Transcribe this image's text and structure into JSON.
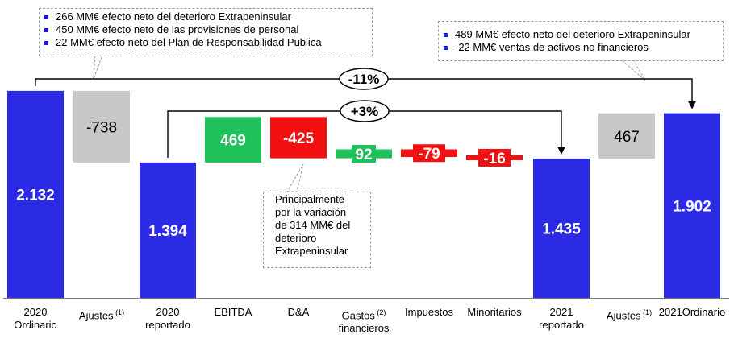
{
  "chart_data": {
    "type": "bar",
    "subtype": "waterfall",
    "categories": [
      {
        "label": [
          "2020",
          "Ordinario"
        ],
        "sup": ""
      },
      {
        "label": [
          "Ajustes"
        ],
        "sup": "(1)"
      },
      {
        "label": [
          "2020",
          "reportado"
        ],
        "sup": ""
      },
      {
        "label": [
          "EBITDA"
        ],
        "sup": ""
      },
      {
        "label": [
          "D&A"
        ],
        "sup": ""
      },
      {
        "label": [
          "Gastos",
          "financieros"
        ],
        "sup": "(2)"
      },
      {
        "label": [
          "Impuestos"
        ],
        "sup": ""
      },
      {
        "label": [
          "Minoritarios"
        ],
        "sup": ""
      },
      {
        "label": [
          "2021",
          "reportado"
        ],
        "sup": ""
      },
      {
        "label": [
          "Ajustes"
        ],
        "sup": "(1)"
      },
      {
        "label": [
          "2021Ordinario"
        ],
        "sup": ""
      }
    ],
    "bars": [
      {
        "kind": "total",
        "value": 2132,
        "label": "2.132",
        "color": "#2b2be6"
      },
      {
        "kind": "delta",
        "value": -738,
        "label": "-738",
        "color": "#c8c8c8"
      },
      {
        "kind": "total",
        "value": 1394,
        "label": "1.394",
        "color": "#2b2be6"
      },
      {
        "kind": "delta",
        "value": 469,
        "label": "469",
        "color": "#1ec15a"
      },
      {
        "kind": "delta",
        "value": -425,
        "label": "-425",
        "color": "#f21010"
      },
      {
        "kind": "delta",
        "value": 92,
        "label": "92",
        "color": "#1ec15a"
      },
      {
        "kind": "delta",
        "value": -79,
        "label": "-79",
        "color": "#f21010"
      },
      {
        "kind": "delta",
        "value": -16,
        "label": "-16",
        "color": "#f21010"
      },
      {
        "kind": "total",
        "value": 1435,
        "label": "1.435",
        "color": "#2b2be6"
      },
      {
        "kind": "delta",
        "value": 467,
        "label": "467",
        "color": "#c8c8c8"
      },
      {
        "kind": "total",
        "value": 1902,
        "label": "1.902",
        "color": "#2b2be6"
      }
    ],
    "bridges": [
      {
        "label": "-11%",
        "from": 0,
        "to": 10
      },
      {
        "label": "+3%",
        "from": 2,
        "to": 8
      }
    ],
    "notes": {
      "left": [
        "266 MM€ efecto neto del deterioro Extrapeninsular",
        "450 MM€ efecto neto de las provisiones de personal",
        "22 MM€ efecto neto del Plan de Responsabilidad Publica"
      ],
      "right": [
        "489 MM€ efecto neto del deterioro Extrapeninsular",
        "-22 MM€ ventas de activos no financieros"
      ],
      "da": [
        "Principalmente",
        "por la variación",
        "de 314 MM€ del",
        "deterioro",
        "Extrapeninsular"
      ]
    }
  }
}
